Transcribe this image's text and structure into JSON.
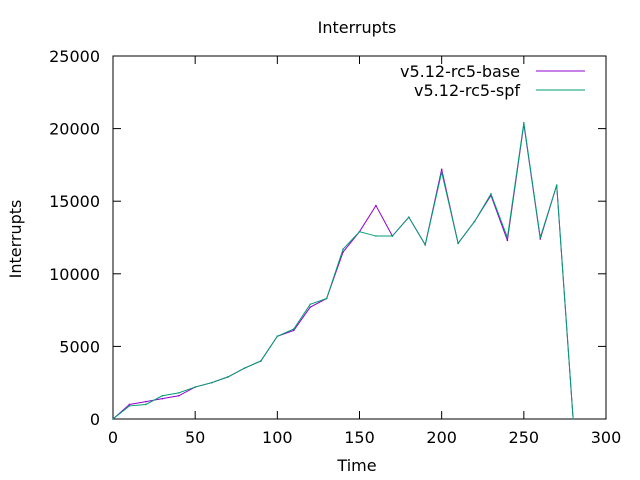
{
  "chart_data": {
    "type": "line",
    "title": "Interrupts",
    "xlabel": "Time",
    "ylabel": "Interrupts",
    "xlim": [
      0,
      300
    ],
    "ylim": [
      0,
      25000
    ],
    "xticks": [
      0,
      50,
      100,
      150,
      200,
      250,
      300
    ],
    "yticks": [
      0,
      5000,
      10000,
      15000,
      20000,
      25000
    ],
    "grid": false,
    "legend_position": "top-right",
    "x": [
      0,
      10,
      20,
      30,
      40,
      50,
      60,
      70,
      80,
      90,
      100,
      110,
      120,
      130,
      140,
      150,
      160,
      170,
      180,
      190,
      200,
      210,
      220,
      230,
      240,
      250,
      260,
      270,
      280
    ],
    "series": [
      {
        "name": "v5.12-rc5-base",
        "color": "#9400d3",
        "values": [
          0,
          1000,
          1200,
          1400,
          1600,
          2200,
          2500,
          2900,
          3500,
          4000,
          5700,
          6100,
          7700,
          8300,
          11500,
          12900,
          14700,
          12600,
          13900,
          12000,
          17200,
          12100,
          13600,
          15400,
          12300,
          20300,
          12400,
          16100,
          0
        ]
      },
      {
        "name": "v5.12-rc5-spf",
        "color": "#009e73",
        "values": [
          0,
          900,
          1000,
          1600,
          1800,
          2200,
          2500,
          2900,
          3500,
          4000,
          5700,
          6200,
          7900,
          8300,
          11700,
          12900,
          12600,
          12600,
          13900,
          12000,
          17000,
          12100,
          13600,
          15500,
          12500,
          20400,
          12500,
          16100,
          0
        ]
      }
    ]
  }
}
